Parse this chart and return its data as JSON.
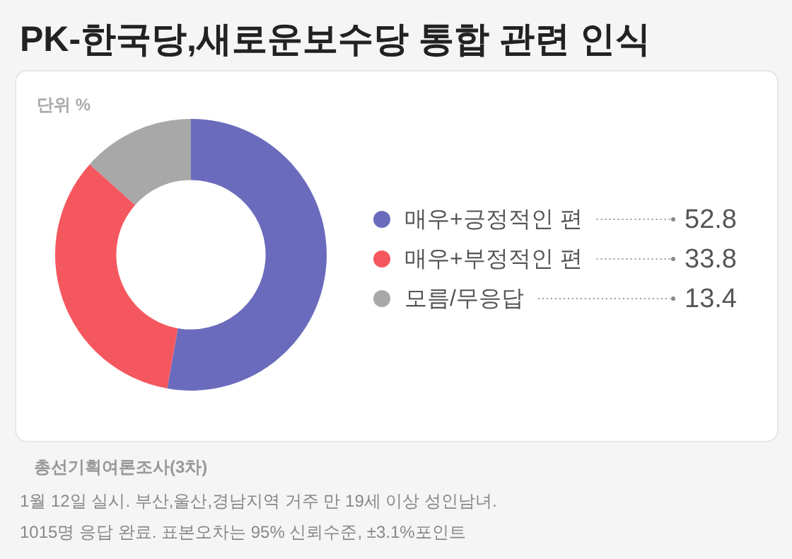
{
  "chart_data": {
    "type": "donut",
    "title": "PK-한국당,새로운보수당 통합 관련 인식",
    "categories": [
      "매우+긍정적인 편",
      "매우+부정적인 편",
      "모름/무응답"
    ],
    "values": [
      52.8,
      33.8,
      13.4
    ],
    "colors": [
      "#6b6bbd",
      "#f5575f",
      "#a8a8a8"
    ],
    "data_labels": true,
    "legend": "right",
    "annotations": [
      "단위 %",
      "총선기획여론조사(3차)",
      "1월 12일 실시. 부산,울산,경남지역 거주 만 19세 이상 성인남녀.",
      "1015명 응답 완료. 표본오차는 95% 신뢰수준, ±3.1%포인트"
    ]
  }
}
